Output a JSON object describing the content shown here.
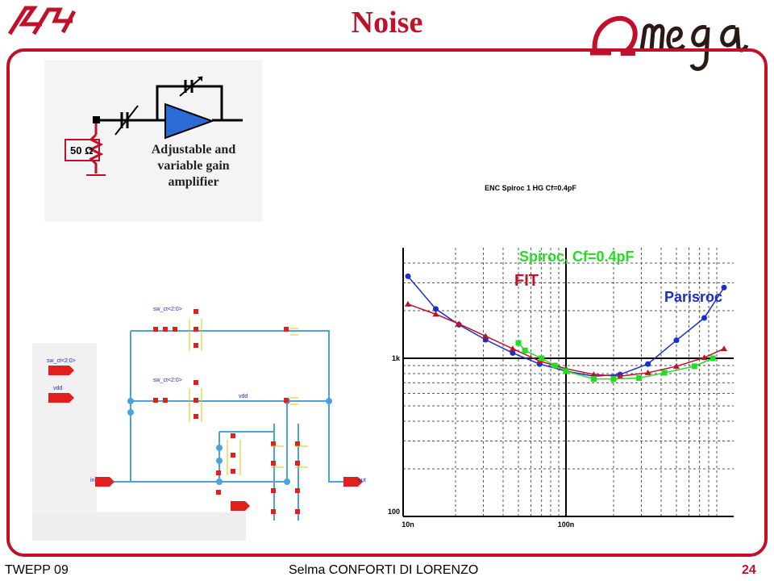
{
  "header": {
    "title": "Noise",
    "left_logo": "LAL",
    "right_logo": "Omega"
  },
  "footer": {
    "left": "TWEPP 09",
    "center": "Selma CONFORTI DI LORENZO",
    "page": "24"
  },
  "amplifier": {
    "resistor_label": "50 Ω",
    "caption": [
      "Adjustable and",
      "variable gain",
      "amplifier"
    ]
  },
  "schematic": {
    "pin_labels": [
      "sw_ct<2:0>",
      "vdd",
      "in",
      "out"
    ]
  },
  "colors": {
    "accent": "#c0102a",
    "parisroc": "#1a2ec8",
    "fit": "#c0102a",
    "spiroc": "#22dd22",
    "amp_fill": "#2a6bd8",
    "schem_wire": "#4aa3df",
    "schem_red": "#e0201e"
  },
  "chart_data": {
    "type": "line",
    "title": "ENC Spiroc 1 HG Cf=0.4pF",
    "xscale": "log",
    "yscale": "log",
    "xlim": [
      1e-08,
      1e-06
    ],
    "ylim": [
      100,
      5000
    ],
    "x_tick_labels": [
      "10n",
      "100n"
    ],
    "y_tick_labels": [
      "100",
      "1k"
    ],
    "series": [
      {
        "name": "Parisroc",
        "color": "#1a2ec8",
        "marker": "circle",
        "x": [
          1e-08,
          1.5e-08,
          2.1e-08,
          3.1e-08,
          4.6e-08,
          6.8e-08,
          1e-07,
          1.5e-07,
          2.2e-07,
          3.3e-07,
          5e-07,
          7.5e-07,
          1e-06
        ],
        "y": [
          3300,
          2050,
          1630,
          1310,
          1080,
          920,
          830,
          770,
          790,
          920,
          1300,
          1800,
          2800
        ]
      },
      {
        "name": "FIT",
        "color": "#c0102a",
        "marker": "triangle",
        "x": [
          1e-08,
          1.5e-08,
          2.1e-08,
          3.1e-08,
          4.6e-08,
          6.8e-08,
          1e-07,
          1.5e-07,
          2.2e-07,
          3.3e-07,
          5e-07,
          7.5e-07,
          1e-06
        ],
        "y": [
          2200,
          1900,
          1650,
          1380,
          1150,
          960,
          860,
          790,
          770,
          810,
          890,
          1010,
          1150
        ]
      },
      {
        "name": "Spiroc, Cf=0.4pF",
        "color": "#22dd22",
        "marker": "square",
        "x": [
          5e-08,
          5.5e-08,
          7e-08,
          8.5e-08,
          1e-07,
          1.5e-07,
          2e-07,
          2.9e-07,
          4.2e-07,
          6.5e-07,
          8.5e-07
        ],
        "y": [
          1250,
          1120,
          1000,
          900,
          830,
          740,
          740,
          750,
          810,
          890,
          1000
        ]
      }
    ]
  }
}
